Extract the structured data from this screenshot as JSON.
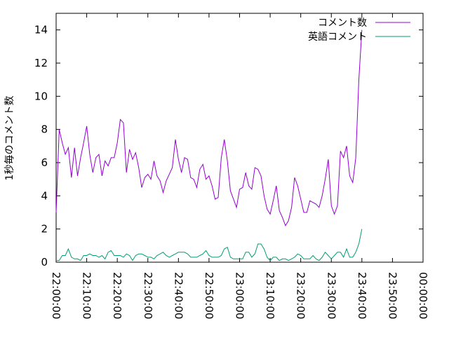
{
  "chart_data": {
    "type": "line",
    "title": "",
    "xlabel": "",
    "ylabel": "1秒毎のコメント数",
    "ylim": [
      0,
      15
    ],
    "yticks": [
      0,
      2,
      4,
      6,
      8,
      10,
      12,
      14
    ],
    "xlim_minutes": [
      0,
      120
    ],
    "xtick_minutes": [
      0,
      10,
      20,
      30,
      40,
      50,
      60,
      70,
      80,
      90,
      100,
      110,
      120
    ],
    "xtick_labels": [
      "22:00:00",
      "22:10:00",
      "22:20:00",
      "22:30:00",
      "22:40:00",
      "22:50:00",
      "23:00:00",
      "23:10:00",
      "23:20:00",
      "23:30:00",
      "23:40:00",
      "23:50:00",
      "00:00:00"
    ],
    "legend_position": "top-right",
    "grid": false,
    "series": [
      {
        "name": "コメント数",
        "color": "#9400d3",
        "points": [
          [
            0,
            3.0
          ],
          [
            1,
            8.0
          ],
          [
            2,
            7.2
          ],
          [
            3,
            6.5
          ],
          [
            4,
            6.9
          ],
          [
            5,
            5.1
          ],
          [
            6,
            6.9
          ],
          [
            7,
            5.2
          ],
          [
            8,
            6.3
          ],
          [
            9,
            7.2
          ],
          [
            10,
            8.2
          ],
          [
            11,
            6.5
          ],
          [
            12,
            5.4
          ],
          [
            13,
            6.3
          ],
          [
            14,
            6.5
          ],
          [
            15,
            5.2
          ],
          [
            16,
            6.1
          ],
          [
            17,
            5.8
          ],
          [
            18,
            6.3
          ],
          [
            19,
            6.3
          ],
          [
            20,
            7.2
          ],
          [
            21,
            8.6
          ],
          [
            22,
            8.4
          ],
          [
            23,
            5.4
          ],
          [
            24,
            6.8
          ],
          [
            25,
            6.2
          ],
          [
            26,
            6.6
          ],
          [
            27,
            5.7
          ],
          [
            28,
            4.5
          ],
          [
            29,
            5.1
          ],
          [
            30,
            5.3
          ],
          [
            31,
            5.0
          ],
          [
            32,
            6.1
          ],
          [
            33,
            5.2
          ],
          [
            34,
            4.9
          ],
          [
            35,
            4.2
          ],
          [
            36,
            4.9
          ],
          [
            37,
            5.3
          ],
          [
            38,
            5.7
          ],
          [
            39,
            7.4
          ],
          [
            40,
            6.2
          ],
          [
            41,
            5.4
          ],
          [
            42,
            6.3
          ],
          [
            43,
            6.2
          ],
          [
            44,
            5.1
          ],
          [
            45,
            5.0
          ],
          [
            46,
            4.5
          ],
          [
            47,
            5.6
          ],
          [
            48,
            5.9
          ],
          [
            49,
            5.0
          ],
          [
            50,
            5.2
          ],
          [
            51,
            4.6
          ],
          [
            52,
            3.8
          ],
          [
            53,
            3.9
          ],
          [
            54,
            6.3
          ],
          [
            55,
            7.4
          ],
          [
            56,
            6.1
          ],
          [
            57,
            4.3
          ],
          [
            58,
            3.8
          ],
          [
            59,
            3.3
          ],
          [
            60,
            4.4
          ],
          [
            61,
            4.5
          ],
          [
            62,
            5.4
          ],
          [
            63,
            4.6
          ],
          [
            64,
            4.4
          ],
          [
            65,
            5.7
          ],
          [
            66,
            5.6
          ],
          [
            67,
            5.2
          ],
          [
            68,
            4.0
          ],
          [
            69,
            3.2
          ],
          [
            70,
            2.9
          ],
          [
            71,
            3.7
          ],
          [
            72,
            4.6
          ],
          [
            73,
            3.1
          ],
          [
            74,
            2.7
          ],
          [
            75,
            2.2
          ],
          [
            76,
            2.5
          ],
          [
            77,
            3.3
          ],
          [
            78,
            5.1
          ],
          [
            79,
            4.6
          ],
          [
            80,
            3.8
          ],
          [
            81,
            3.0
          ],
          [
            82,
            3.0
          ],
          [
            83,
            3.7
          ],
          [
            84,
            3.6
          ],
          [
            85,
            3.5
          ],
          [
            86,
            3.3
          ],
          [
            87,
            4.0
          ],
          [
            88,
            5.0
          ],
          [
            89,
            6.2
          ],
          [
            90,
            3.4
          ],
          [
            91,
            2.9
          ],
          [
            92,
            3.4
          ],
          [
            93,
            6.7
          ],
          [
            94,
            6.3
          ],
          [
            95,
            7.0
          ],
          [
            96,
            5.2
          ],
          [
            97,
            4.8
          ],
          [
            98,
            6.3
          ],
          [
            99,
            11.0
          ],
          [
            100,
            14.0
          ]
        ]
      },
      {
        "name": "英語コメント",
        "color": "#009e73",
        "points": [
          [
            0,
            0.1
          ],
          [
            1,
            0.1
          ],
          [
            2,
            0.4
          ],
          [
            3,
            0.4
          ],
          [
            4,
            0.8
          ],
          [
            5,
            0.3
          ],
          [
            6,
            0.2
          ],
          [
            7,
            0.2
          ],
          [
            8,
            0.1
          ],
          [
            9,
            0.4
          ],
          [
            10,
            0.4
          ],
          [
            11,
            0.5
          ],
          [
            12,
            0.4
          ],
          [
            13,
            0.4
          ],
          [
            14,
            0.3
          ],
          [
            15,
            0.4
          ],
          [
            16,
            0.2
          ],
          [
            17,
            0.6
          ],
          [
            18,
            0.7
          ],
          [
            19,
            0.4
          ],
          [
            20,
            0.4
          ],
          [
            21,
            0.4
          ],
          [
            22,
            0.3
          ],
          [
            23,
            0.5
          ],
          [
            24,
            0.4
          ],
          [
            25,
            0.1
          ],
          [
            26,
            0.4
          ],
          [
            27,
            0.5
          ],
          [
            28,
            0.5
          ],
          [
            29,
            0.4
          ],
          [
            30,
            0.3
          ],
          [
            31,
            0.3
          ],
          [
            32,
            0.2
          ],
          [
            33,
            0.4
          ],
          [
            34,
            0.5
          ],
          [
            35,
            0.6
          ],
          [
            36,
            0.4
          ],
          [
            37,
            0.3
          ],
          [
            38,
            0.4
          ],
          [
            39,
            0.5
          ],
          [
            40,
            0.6
          ],
          [
            41,
            0.6
          ],
          [
            42,
            0.6
          ],
          [
            43,
            0.5
          ],
          [
            44,
            0.3
          ],
          [
            45,
            0.3
          ],
          [
            46,
            0.3
          ],
          [
            47,
            0.4
          ],
          [
            48,
            0.5
          ],
          [
            49,
            0.7
          ],
          [
            50,
            0.4
          ],
          [
            51,
            0.3
          ],
          [
            52,
            0.3
          ],
          [
            53,
            0.3
          ],
          [
            54,
            0.4
          ],
          [
            55,
            0.8
          ],
          [
            56,
            0.9
          ],
          [
            57,
            0.3
          ],
          [
            58,
            0.2
          ],
          [
            59,
            0.2
          ],
          [
            60,
            0.2
          ],
          [
            61,
            0.2
          ],
          [
            62,
            0.6
          ],
          [
            63,
            0.6
          ],
          [
            64,
            0.3
          ],
          [
            65,
            0.5
          ],
          [
            66,
            1.1
          ],
          [
            67,
            1.1
          ],
          [
            68,
            0.8
          ],
          [
            69,
            0.3
          ],
          [
            70,
            0.1
          ],
          [
            71,
            0.3
          ],
          [
            72,
            0.3
          ],
          [
            73,
            0.1
          ],
          [
            74,
            0.2
          ],
          [
            75,
            0.2
          ],
          [
            76,
            0.1
          ],
          [
            77,
            0.2
          ],
          [
            78,
            0.3
          ],
          [
            79,
            0.5
          ],
          [
            80,
            0.4
          ],
          [
            81,
            0.2
          ],
          [
            82,
            0.2
          ],
          [
            83,
            0.2
          ],
          [
            84,
            0.4
          ],
          [
            85,
            0.2
          ],
          [
            86,
            0.1
          ],
          [
            87,
            0.3
          ],
          [
            88,
            0.6
          ],
          [
            89,
            0.4
          ],
          [
            90,
            0.2
          ],
          [
            91,
            0.4
          ],
          [
            92,
            0.6
          ],
          [
            93,
            0.6
          ],
          [
            94,
            0.3
          ],
          [
            95,
            0.8
          ],
          [
            96,
            0.3
          ],
          [
            97,
            0.3
          ],
          [
            98,
            0.6
          ],
          [
            99,
            1.1
          ],
          [
            100,
            2.0
          ]
        ]
      }
    ]
  }
}
